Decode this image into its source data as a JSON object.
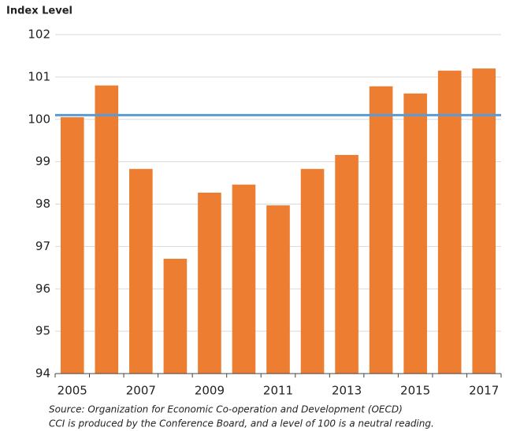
{
  "chart_data": {
    "type": "bar",
    "y_axis_label": "Index Level",
    "categories": [
      "2005",
      null,
      "2007",
      null,
      "2009",
      null,
      "2011",
      null,
      "2013",
      null,
      "2015",
      null,
      "2017"
    ],
    "values": [
      100.05,
      100.8,
      98.83,
      96.71,
      98.27,
      98.46,
      97.97,
      98.83,
      99.16,
      100.78,
      100.61,
      101.15,
      101.2
    ],
    "color": "#ed7d31",
    "reference_line": {
      "value": 100.1,
      "color": "#5b9bd5"
    },
    "ylim": [
      94,
      102
    ],
    "yticks": [
      94,
      95,
      96,
      97,
      98,
      99,
      100,
      101,
      102
    ],
    "grid": true,
    "notes": [
      "Source:  Organization for Economic Co-operation and Development (OECD)",
      "CCI is produced by the Conference Board, and a level of 100 is a neutral reading."
    ]
  }
}
